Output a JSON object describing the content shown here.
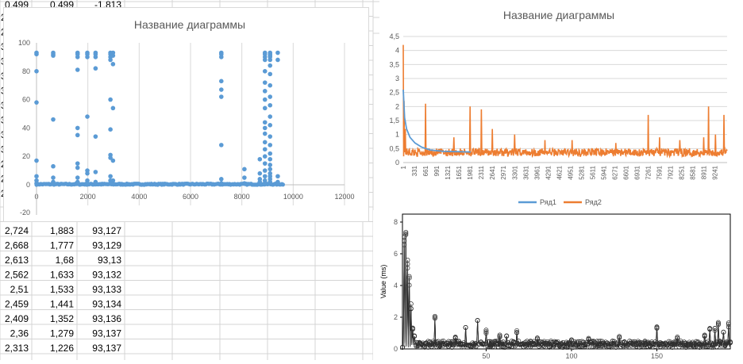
{
  "spreadsheet": {
    "top_row": [
      "0,499",
      "0,499",
      "-1,813"
    ],
    "left_stubs": [
      "2,",
      "2,",
      "3,",
      "3,",
      "3,",
      "3,",
      "3,",
      "3,",
      "3,",
      "3,",
      "2,",
      "2,",
      "2,"
    ],
    "rows": [
      [
        "2,724",
        "1,883",
        "93,127"
      ],
      [
        "2,668",
        "1,777",
        "93,129"
      ],
      [
        "2,613",
        "1,68",
        "93,13"
      ],
      [
        "2,562",
        "1,633",
        "93,132"
      ],
      [
        "2,51",
        "1,533",
        "93,133"
      ],
      [
        "2,459",
        "1,441",
        "93,134"
      ],
      [
        "2,409",
        "1,352",
        "93,136"
      ],
      [
        "2,36",
        "1,279",
        "93,137"
      ],
      [
        "2,313",
        "1,226",
        "93,137"
      ]
    ]
  },
  "chart_data": [
    {
      "type": "scatter",
      "title": "Название диаграммы",
      "xlim": [
        0,
        12000
      ],
      "ylim": [
        0,
        100
      ],
      "xticks": [
        "0",
        "2000",
        "4000",
        "6000",
        "8000",
        "10000",
        "12000"
      ],
      "yticks": [
        "0",
        "20",
        "40",
        "60",
        "80",
        "100"
      ],
      "extra_y_tick": "-20",
      "grid": "vertical",
      "color": "#5B9BD5",
      "baseline_x_range": [
        0,
        9600
      ],
      "clusters": [
        {
          "x": 0,
          "y": [
            93,
            92,
            80,
            58,
            17,
            6,
            3,
            1
          ]
        },
        {
          "x": 650,
          "y": [
            93,
            92,
            91,
            46,
            13,
            5,
            2,
            1
          ]
        },
        {
          "x": 1600,
          "y": [
            93,
            92,
            90,
            81,
            40,
            35,
            15,
            12,
            5,
            2,
            1
          ]
        },
        {
          "x": 1980,
          "y": [
            93,
            92,
            90,
            48,
            10,
            8,
            3,
            1
          ]
        },
        {
          "x": 2300,
          "y": [
            93,
            92,
            90,
            82,
            34,
            9,
            2
          ]
        },
        {
          "x": 2880,
          "y": [
            93,
            92,
            90,
            88,
            60,
            39,
            21,
            19,
            6,
            3,
            1
          ]
        },
        {
          "x": 2980,
          "y": [
            93,
            91,
            85,
            54,
            17,
            3
          ]
        },
        {
          "x": 7200,
          "y": [
            93,
            92,
            90,
            73,
            67,
            62,
            28,
            4,
            1
          ]
        },
        {
          "x": 8100,
          "y": [
            11,
            5,
            1
          ]
        },
        {
          "x": 8700,
          "y": [
            18,
            8,
            4,
            2
          ]
        },
        {
          "x": 8900,
          "y": [
            93,
            92,
            90,
            88,
            80,
            72,
            66,
            60,
            54,
            44,
            40,
            36,
            30,
            25,
            20,
            15,
            10,
            6,
            3,
            1
          ]
        },
        {
          "x": 9100,
          "y": [
            93,
            92,
            91,
            90,
            88,
            84,
            78,
            70,
            62,
            56,
            48,
            42,
            34,
            28,
            22,
            18,
            14,
            11,
            8,
            6,
            4,
            2,
            1
          ]
        },
        {
          "x": 9400,
          "y": [
            93,
            88,
            6,
            2,
            1
          ]
        }
      ]
    },
    {
      "type": "line",
      "title": "Название диаграммы",
      "ylim": [
        0,
        4.5
      ],
      "yticks": [
        "0",
        "0,5",
        "1",
        "1,5",
        "2",
        "2,5",
        "3",
        "3,5",
        "4",
        "4,5"
      ],
      "x_categories": [
        "1",
        "331",
        "661",
        "991",
        "1321",
        "1651",
        "1981",
        "2311",
        "2641",
        "2971",
        "3301",
        "3631",
        "3961",
        "4291",
        "4621",
        "4951",
        "5281",
        "5611",
        "5941",
        "6271",
        "6601",
        "6931",
        "7261",
        "7591",
        "7921",
        "8251",
        "8581",
        "8911",
        "9241"
      ],
      "x_range": [
        1,
        9600
      ],
      "legend_position": "bottom",
      "series": [
        {
          "name": "Ряд1",
          "color": "#5B9BD5",
          "points": [
            [
              1,
              2.6
            ],
            [
              40,
              1.6
            ],
            [
              100,
              1.2
            ],
            [
              200,
              0.9
            ],
            [
              350,
              0.7
            ],
            [
              550,
              0.55
            ],
            [
              800,
              0.45
            ],
            [
              1200,
              0.4
            ],
            [
              2000,
              0.38
            ]
          ]
        },
        {
          "name": "Ряд2",
          "color": "#ED7D31",
          "baseline": 0.35,
          "spikes": [
            [
              5,
              4.2
            ],
            [
              20,
              2.2
            ],
            [
              60,
              1.2
            ],
            [
              661,
              2.1
            ],
            [
              1500,
              0.9
            ],
            [
              1981,
              2.0
            ],
            [
              2311,
              1.9
            ],
            [
              2641,
              1.2
            ],
            [
              3301,
              1.0
            ],
            [
              4200,
              0.8
            ],
            [
              5000,
              0.8
            ],
            [
              6300,
              0.7
            ],
            [
              7261,
              1.7
            ],
            [
              7600,
              0.9
            ],
            [
              8200,
              0.8
            ],
            [
              8900,
              0.9
            ],
            [
              9050,
              2.0
            ],
            [
              9250,
              1.0
            ],
            [
              9500,
              1.7
            ]
          ]
        }
      ]
    },
    {
      "type": "line",
      "ylabel": "Value (ms)",
      "xlim": [
        1,
        193
      ],
      "ylim": [
        0,
        8.5
      ],
      "xticks": [
        "50",
        "100",
        "150"
      ],
      "yticks": [
        "0",
        "2",
        "4",
        "6",
        "8"
      ],
      "markers": "circle",
      "color": "#2f2f2f",
      "baseline": 0.3,
      "spikes": [
        [
          2,
          8.2
        ],
        [
          3,
          7.4
        ],
        [
          4,
          6.2
        ],
        [
          5,
          5.0
        ],
        [
          6,
          3.0
        ],
        [
          7,
          1.5
        ],
        [
          8,
          0.9
        ],
        [
          20,
          2.1
        ],
        [
          32,
          0.8
        ],
        [
          38,
          1.4
        ],
        [
          45,
          1.8
        ],
        [
          50,
          1.2
        ],
        [
          58,
          0.9
        ],
        [
          62,
          1.0
        ],
        [
          68,
          1.2
        ],
        [
          80,
          0.7
        ],
        [
          100,
          0.6
        ],
        [
          110,
          0.7
        ],
        [
          128,
          0.8
        ],
        [
          150,
          1.5
        ],
        [
          162,
          0.8
        ],
        [
          178,
          0.9
        ],
        [
          181,
          1.5
        ],
        [
          184,
          1.3
        ],
        [
          186,
          1.8
        ],
        [
          189,
          1.1
        ],
        [
          192,
          1.7
        ]
      ]
    }
  ]
}
